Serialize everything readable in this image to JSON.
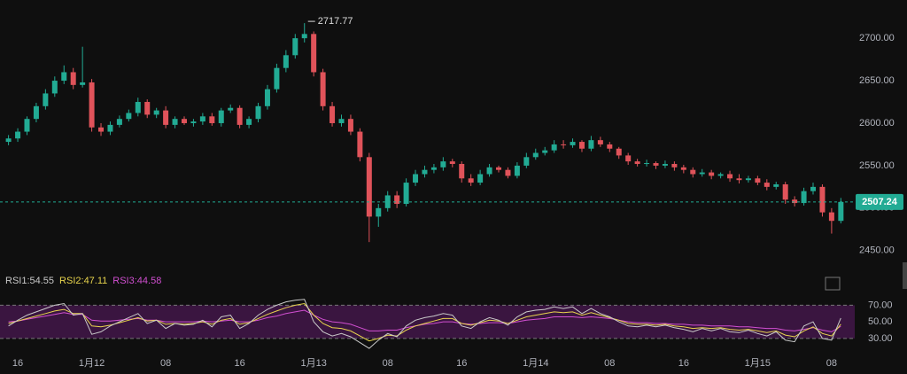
{
  "chart_data": [
    {
      "type": "candlestick",
      "x": [
        -1,
        0,
        1,
        2,
        3,
        4,
        5,
        6,
        7,
        8,
        9,
        10,
        11,
        12,
        13,
        14,
        15,
        16,
        17,
        18,
        19,
        20,
        21,
        22,
        23,
        24,
        25,
        26,
        27,
        28,
        29,
        30,
        31,
        32,
        33,
        34,
        35,
        36,
        37,
        38,
        39,
        40,
        41,
        42,
        43,
        44,
        45,
        46,
        47,
        48,
        49,
        50,
        51,
        52,
        53,
        54,
        55,
        56,
        57,
        58,
        59,
        60,
        61,
        62,
        63,
        64,
        65,
        66,
        67,
        68,
        69,
        70,
        71,
        72,
        73,
        74,
        75,
        76,
        77,
        78,
        79,
        80,
        81,
        82,
        83,
        84,
        85,
        86,
        87,
        88,
        89
      ],
      "open": [
        2578,
        2582,
        2590,
        2605,
        2620,
        2635,
        2650,
        2660,
        2645,
        2648,
        2595,
        2590,
        2598,
        2605,
        2612,
        2625,
        2610,
        2615,
        2598,
        2605,
        2600,
        2602,
        2608,
        2600,
        2615,
        2618,
        2598,
        2605,
        2620,
        2640,
        2665,
        2680,
        2700,
        2705,
        2660,
        2620,
        2600,
        2605,
        2590,
        2560,
        2490,
        2500,
        2515,
        2505,
        2530,
        2540,
        2545,
        2548,
        2555,
        2552,
        2535,
        2530,
        2540,
        2548,
        2545,
        2538,
        2550,
        2560,
        2565,
        2568,
        2575,
        2574,
        2578,
        2570,
        2580,
        2575,
        2570,
        2562,
        2555,
        2552,
        2553,
        2550,
        2552,
        2548,
        2545,
        2540,
        2542,
        2538,
        2540,
        2535,
        2533,
        2535,
        2530,
        2525,
        2528,
        2510,
        2506,
        2520,
        2525,
        2495,
        2485
      ],
      "high": [
        2586,
        2594,
        2608,
        2624,
        2640,
        2655,
        2668,
        2665,
        2690,
        2652,
        2600,
        2602,
        2609,
        2616,
        2630,
        2628,
        2618,
        2620,
        2608,
        2608,
        2605,
        2612,
        2612,
        2618,
        2622,
        2621,
        2608,
        2624,
        2645,
        2670,
        2686,
        2705,
        2717.77,
        2708,
        2664,
        2625,
        2610,
        2610,
        2594,
        2565,
        2505,
        2520,
        2520,
        2535,
        2545,
        2550,
        2552,
        2560,
        2558,
        2555,
        2540,
        2545,
        2552,
        2550,
        2548,
        2554,
        2565,
        2570,
        2572,
        2580,
        2580,
        2582,
        2580,
        2585,
        2584,
        2578,
        2572,
        2565,
        2558,
        2557,
        2555,
        2556,
        2555,
        2551,
        2548,
        2546,
        2545,
        2542,
        2544,
        2540,
        2538,
        2538,
        2534,
        2531,
        2531,
        2514,
        2524,
        2530,
        2528,
        2500,
        2512
      ],
      "low": [
        2574,
        2578,
        2586,
        2601,
        2616,
        2631,
        2646,
        2640,
        2642,
        2590,
        2585,
        2586,
        2595,
        2602,
        2608,
        2606,
        2606,
        2594,
        2594,
        2598,
        2596,
        2598,
        2597,
        2596,
        2612,
        2594,
        2594,
        2601,
        2616,
        2636,
        2660,
        2676,
        2695,
        2655,
        2615,
        2596,
        2596,
        2586,
        2555,
        2460,
        2478,
        2496,
        2500,
        2502,
        2526,
        2536,
        2541,
        2544,
        2548,
        2530,
        2526,
        2527,
        2537,
        2542,
        2535,
        2535,
        2547,
        2557,
        2562,
        2565,
        2570,
        2571,
        2566,
        2567,
        2572,
        2566,
        2558,
        2551,
        2549,
        2549,
        2546,
        2547,
        2544,
        2541,
        2536,
        2537,
        2534,
        2535,
        2531,
        2529,
        2530,
        2527,
        2521,
        2522,
        2505,
        2502,
        2503,
        2516,
        2490,
        2470,
        2482
      ],
      "close": [
        2582,
        2590,
        2605,
        2620,
        2635,
        2650,
        2660,
        2645,
        2648,
        2595,
        2590,
        2598,
        2605,
        2612,
        2625,
        2610,
        2615,
        2598,
        2605,
        2600,
        2602,
        2608,
        2600,
        2615,
        2618,
        2598,
        2605,
        2620,
        2640,
        2665,
        2680,
        2700,
        2705,
        2660,
        2620,
        2600,
        2605,
        2590,
        2560,
        2490,
        2500,
        2515,
        2505,
        2530,
        2540,
        2545,
        2548,
        2555,
        2552,
        2535,
        2530,
        2540,
        2548,
        2545,
        2538,
        2550,
        2560,
        2565,
        2568,
        2575,
        2574,
        2578,
        2570,
        2580,
        2575,
        2570,
        2562,
        2555,
        2552,
        2553,
        2550,
        2552,
        2548,
        2545,
        2540,
        2542,
        2538,
        2540,
        2535,
        2533,
        2535,
        2530,
        2525,
        2528,
        2510,
        2506,
        2520,
        2525,
        2495,
        2485,
        2507.24
      ],
      "up_color": "#22ab94",
      "down_color": "#e0535a",
      "xlim": [
        -1.92,
        90.5
      ],
      "xticks": [
        {
          "value": 0,
          "label": "16"
        },
        {
          "value": 8,
          "label": "1月12"
        },
        {
          "value": 16,
          "label": "08"
        },
        {
          "value": 24,
          "label": "16"
        },
        {
          "value": 32,
          "label": "1月13"
        },
        {
          "value": 40,
          "label": "08"
        },
        {
          "value": 48,
          "label": "16"
        },
        {
          "value": 56,
          "label": "1月14"
        },
        {
          "value": 64,
          "label": "08"
        },
        {
          "value": 72,
          "label": "16"
        },
        {
          "value": 80,
          "label": "1月15"
        },
        {
          "value": 88,
          "label": "08"
        }
      ],
      "ylim": [
        2432,
        2745
      ],
      "yticks": [
        {
          "value": 2450,
          "label": "2450.00"
        },
        {
          "value": 2500,
          "label": "2500.00"
        },
        {
          "value": 2550,
          "label": "2550.00"
        },
        {
          "value": 2600,
          "label": "2600.00"
        },
        {
          "value": 2650,
          "label": "2650.00"
        },
        {
          "value": 2700,
          "label": "2700.00"
        }
      ]
    },
    {
      "type": "line",
      "series": [
        {
          "name": "RSI1:",
          "color": "#c9c9c9",
          "values": [
            45,
            52,
            58,
            62,
            66,
            70,
            72,
            58,
            60,
            35,
            38,
            45,
            50,
            55,
            60,
            48,
            52,
            42,
            48,
            46,
            47,
            52,
            44,
            56,
            58,
            42,
            48,
            58,
            65,
            70,
            74,
            76,
            77,
            50,
            38,
            33,
            36,
            32,
            25,
            18,
            28,
            36,
            32,
            45,
            52,
            55,
            57,
            60,
            58,
            45,
            42,
            50,
            55,
            52,
            46,
            56,
            62,
            64,
            65,
            68,
            66,
            68,
            60,
            66,
            60,
            56,
            50,
            45,
            44,
            46,
            44,
            46,
            43,
            41,
            38,
            42,
            39,
            42,
            38,
            37,
            40,
            36,
            33,
            38,
            28,
            26,
            45,
            50,
            30,
            28,
            54.55
          ]
        },
        {
          "name": "RSI2:",
          "color": "#e8d44d",
          "values": [
            48,
            51,
            54,
            57,
            60,
            63,
            65,
            60,
            60,
            45,
            44,
            46,
            49,
            52,
            55,
            51,
            52,
            47,
            48,
            47,
            48,
            50,
            47,
            52,
            54,
            47,
            49,
            54,
            59,
            63,
            67,
            70,
            72,
            58,
            48,
            43,
            42,
            39,
            33,
            27,
            30,
            34,
            33,
            40,
            45,
            48,
            51,
            54,
            54,
            48,
            46,
            49,
            52,
            51,
            48,
            52,
            56,
            58,
            60,
            62,
            61,
            62,
            58,
            61,
            58,
            55,
            52,
            48,
            47,
            47,
            46,
            47,
            45,
            44,
            42,
            43,
            42,
            43,
            41,
            40,
            41,
            39,
            37,
            39,
            34,
            32,
            39,
            44,
            36,
            33,
            47.11
          ]
        },
        {
          "name": "RSI3:",
          "color": "#d14fd1",
          "values": [
            50,
            51,
            53,
            55,
            57,
            59,
            61,
            59,
            59,
            52,
            51,
            51,
            52,
            53,
            54,
            52,
            52,
            50,
            50,
            50,
            50,
            51,
            50,
            51,
            52,
            50,
            50,
            52,
            55,
            57,
            60,
            62,
            64,
            58,
            53,
            50,
            49,
            47,
            43,
            39,
            39,
            40,
            40,
            43,
            45,
            47,
            48,
            50,
            50,
            48,
            47,
            48,
            49,
            49,
            48,
            50,
            52,
            53,
            54,
            56,
            56,
            56,
            55,
            56,
            55,
            54,
            52,
            50,
            49,
            49,
            48,
            48,
            47,
            47,
            46,
            46,
            45,
            45,
            45,
            44,
            44,
            43,
            42,
            42,
            40,
            39,
            41,
            43,
            40,
            38,
            44.58
          ]
        }
      ],
      "band_color": "#3a1540",
      "ylim": [
        16,
        80
      ],
      "yticks": [
        {
          "value": 30,
          "label": "30.00"
        },
        {
          "value": 50,
          "label": "50.00"
        },
        {
          "value": 70,
          "label": "70.00"
        }
      ]
    }
  ]
}
